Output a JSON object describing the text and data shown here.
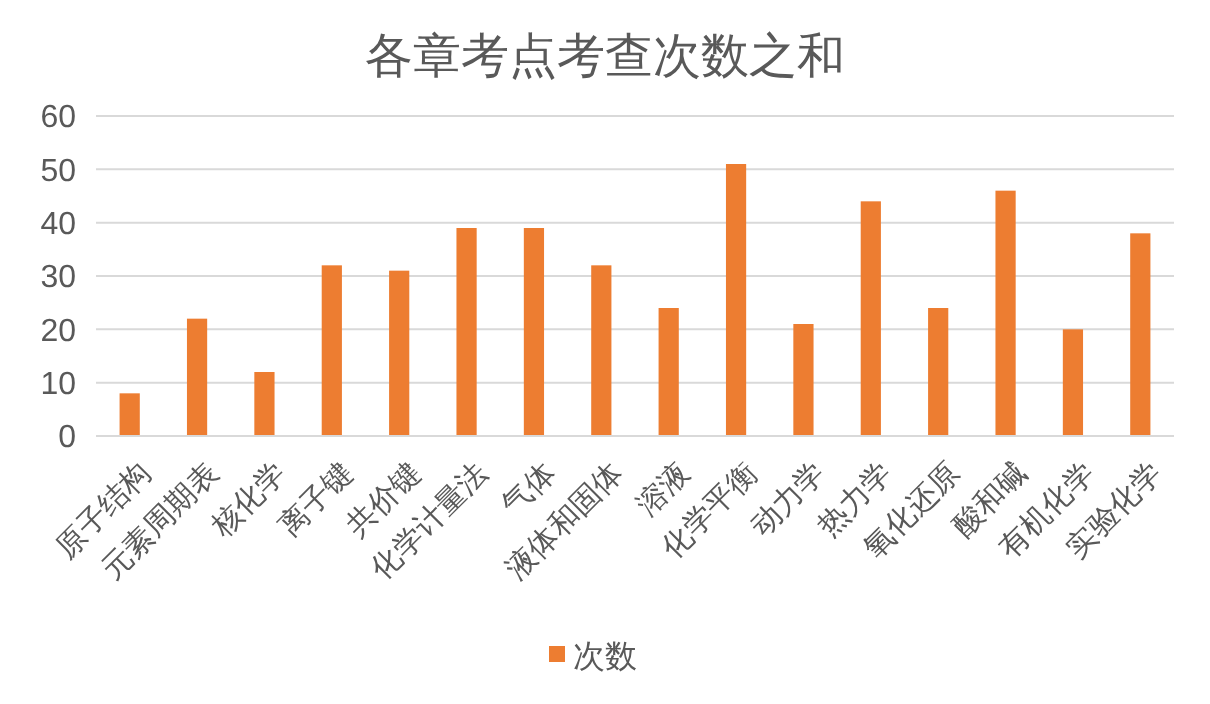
{
  "chart_data": {
    "type": "bar",
    "title": "各章考点考查次数之和",
    "categories": [
      "原子结构",
      "元素周期表",
      "核化学",
      "离子键",
      "共价键",
      "化学计量法",
      "气体",
      "液体和固体",
      "溶液",
      "化学平衡",
      "动力学",
      "热力学",
      "氧化还原",
      "酸和碱",
      "有机化学",
      "实验化学"
    ],
    "series": [
      {
        "name": "次数",
        "color": "#ed7d31",
        "values": [
          8,
          22,
          12,
          32,
          31,
          39,
          39,
          32,
          24,
          51,
          21,
          44,
          24,
          46,
          20,
          38
        ]
      }
    ],
    "ylim": [
      0,
      60
    ],
    "yticks": [
      0,
      10,
      20,
      30,
      40,
      50,
      60
    ],
    "grid": "y",
    "legend": "bottom"
  }
}
